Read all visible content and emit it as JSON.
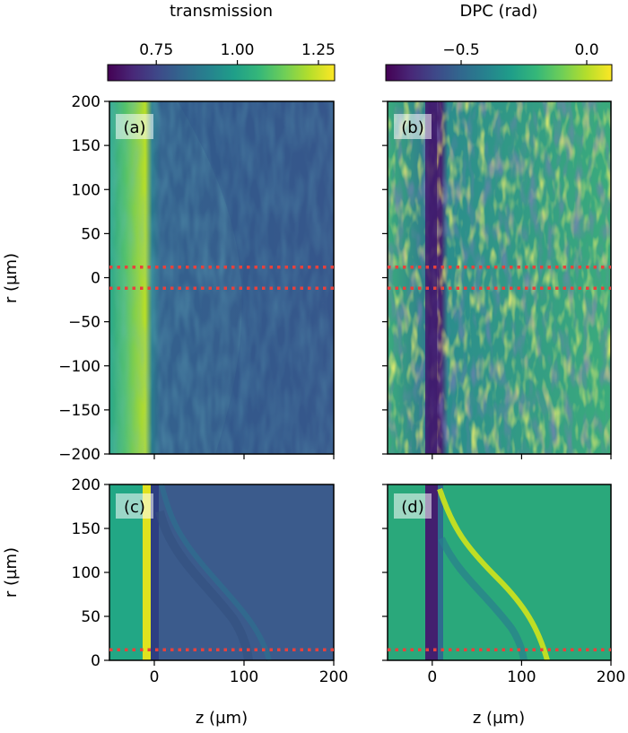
{
  "colors": {
    "viridis": [
      "#440154",
      "#482878",
      "#3e4989",
      "#31688e",
      "#26828e",
      "#1f9e89",
      "#35b779",
      "#6ece58",
      "#b5de2b",
      "#fde725"
    ],
    "marker_line": "#e8413c",
    "frame": "#000000"
  },
  "chart_data": {
    "type": "heatmap",
    "x_label": "z (µm)",
    "y_label": "r (µm)",
    "x_range": [
      -50,
      200
    ],
    "x_ticks": [
      0,
      100,
      200
    ],
    "colorbars": [
      {
        "label": "transmission",
        "range": [
          0.6,
          1.3
        ],
        "ticks": [
          0.75,
          1.0,
          1.25
        ],
        "tick_labels": [
          "0.75",
          "1.00",
          "1.25"
        ],
        "colormap": "viridis"
      },
      {
        "label": "DPC (rad)",
        "range": [
          -0.8,
          0.1
        ],
        "ticks": [
          -0.5,
          0.0
        ],
        "tick_labels": [
          "−0.5",
          "0.0"
        ],
        "colormap": "viridis"
      }
    ],
    "panels": [
      {
        "tag": "(a)",
        "quantity": "transmission",
        "type": "measured",
        "y_range": [
          -200,
          200
        ],
        "y_ticks": [
          -200,
          -150,
          -100,
          -50,
          0,
          50,
          100,
          150,
          200
        ],
        "y_tick_labels": [
          "−200",
          "−150",
          "−100",
          "−50",
          "0",
          "50",
          "100",
          "150",
          "200"
        ],
        "marker_lines_r": [
          12,
          -12
        ]
      },
      {
        "tag": "(b)",
        "quantity": "DPC",
        "type": "measured",
        "y_range": [
          -200,
          200
        ],
        "marker_lines_r": [
          12,
          -12
        ]
      },
      {
        "tag": "(c)",
        "quantity": "transmission",
        "type": "simulated",
        "y_range": [
          0,
          200
        ],
        "y_ticks": [
          0,
          50,
          100,
          150,
          200
        ],
        "y_tick_labels": [
          "0",
          "50",
          "100",
          "150",
          "200"
        ],
        "marker_lines_r": [
          12
        ]
      },
      {
        "tag": "(d)",
        "quantity": "DPC",
        "type": "simulated",
        "y_range": [
          0,
          200
        ],
        "marker_lines_r": [
          12
        ]
      }
    ]
  }
}
